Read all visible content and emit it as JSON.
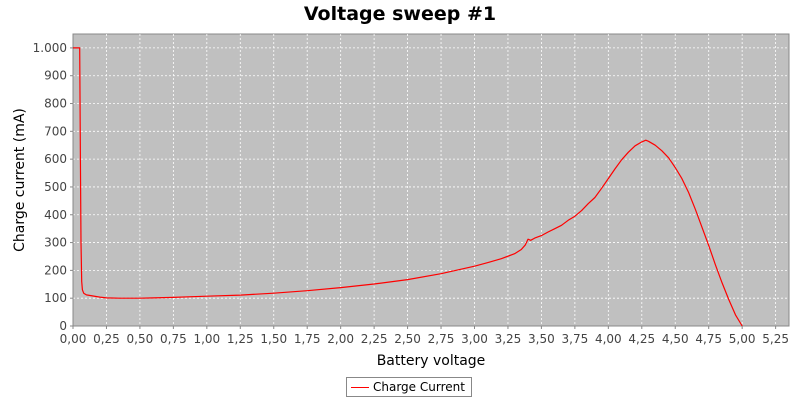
{
  "chart_data": {
    "type": "line",
    "title": "Voltage sweep #1",
    "xlabel": "Battery voltage",
    "ylabel": "Charge current (mA)",
    "xlim": [
      0,
      5.35
    ],
    "ylim": [
      0,
      1050
    ],
    "xticks": [
      0,
      0.25,
      0.5,
      0.75,
      1.0,
      1.25,
      1.5,
      1.75,
      2.0,
      2.25,
      2.5,
      2.75,
      3.0,
      3.25,
      3.5,
      3.75,
      4.0,
      4.25,
      4.5,
      4.75,
      5.0,
      5.25
    ],
    "xtick_labels": [
      "0,00",
      "0,25",
      "0,50",
      "0,75",
      "1,00",
      "1,25",
      "1,50",
      "1,75",
      "2,00",
      "2,25",
      "2,50",
      "2,75",
      "3,00",
      "3,25",
      "3,50",
      "3,75",
      "4,00",
      "4,25",
      "4,50",
      "4,75",
      "5,00",
      "5,25"
    ],
    "yticks": [
      0,
      100,
      200,
      300,
      400,
      500,
      600,
      700,
      800,
      900,
      1000
    ],
    "ytick_labels": [
      "0",
      "100",
      "200",
      "300",
      "400",
      "500",
      "600",
      "700",
      "800",
      "900",
      "1.000"
    ],
    "grid": true,
    "legend_position": "bottom-center",
    "series": [
      {
        "name": "Charge Current",
        "color": "#ff0000",
        "points": [
          [
            0.0,
            1000
          ],
          [
            0.05,
            1000
          ],
          [
            0.055,
            600
          ],
          [
            0.06,
            300
          ],
          [
            0.065,
            160
          ],
          [
            0.07,
            130
          ],
          [
            0.08,
            118
          ],
          [
            0.1,
            112
          ],
          [
            0.15,
            108
          ],
          [
            0.2,
            104
          ],
          [
            0.25,
            101
          ],
          [
            0.35,
            100
          ],
          [
            0.5,
            100
          ],
          [
            0.6,
            101
          ],
          [
            0.75,
            103
          ],
          [
            1.0,
            107
          ],
          [
            1.25,
            111
          ],
          [
            1.5,
            118
          ],
          [
            1.75,
            127
          ],
          [
            2.0,
            138
          ],
          [
            2.25,
            151
          ],
          [
            2.5,
            167
          ],
          [
            2.75,
            188
          ],
          [
            3.0,
            215
          ],
          [
            3.1,
            228
          ],
          [
            3.2,
            242
          ],
          [
            3.3,
            260
          ],
          [
            3.35,
            275
          ],
          [
            3.38,
            292
          ],
          [
            3.4,
            312
          ],
          [
            3.42,
            308
          ],
          [
            3.45,
            316
          ],
          [
            3.5,
            325
          ],
          [
            3.55,
            338
          ],
          [
            3.6,
            350
          ],
          [
            3.65,
            362
          ],
          [
            3.7,
            380
          ],
          [
            3.75,
            395
          ],
          [
            3.8,
            415
          ],
          [
            3.85,
            440
          ],
          [
            3.9,
            462
          ],
          [
            3.95,
            495
          ],
          [
            4.0,
            530
          ],
          [
            4.05,
            565
          ],
          [
            4.1,
            598
          ],
          [
            4.15,
            625
          ],
          [
            4.2,
            648
          ],
          [
            4.25,
            662
          ],
          [
            4.28,
            668
          ],
          [
            4.3,
            664
          ],
          [
            4.35,
            650
          ],
          [
            4.4,
            630
          ],
          [
            4.45,
            605
          ],
          [
            4.5,
            570
          ],
          [
            4.55,
            530
          ],
          [
            4.6,
            480
          ],
          [
            4.65,
            420
          ],
          [
            4.7,
            355
          ],
          [
            4.75,
            290
          ],
          [
            4.8,
            220
          ],
          [
            4.85,
            155
          ],
          [
            4.9,
            95
          ],
          [
            4.95,
            40
          ],
          [
            5.0,
            0
          ]
        ]
      }
    ]
  }
}
